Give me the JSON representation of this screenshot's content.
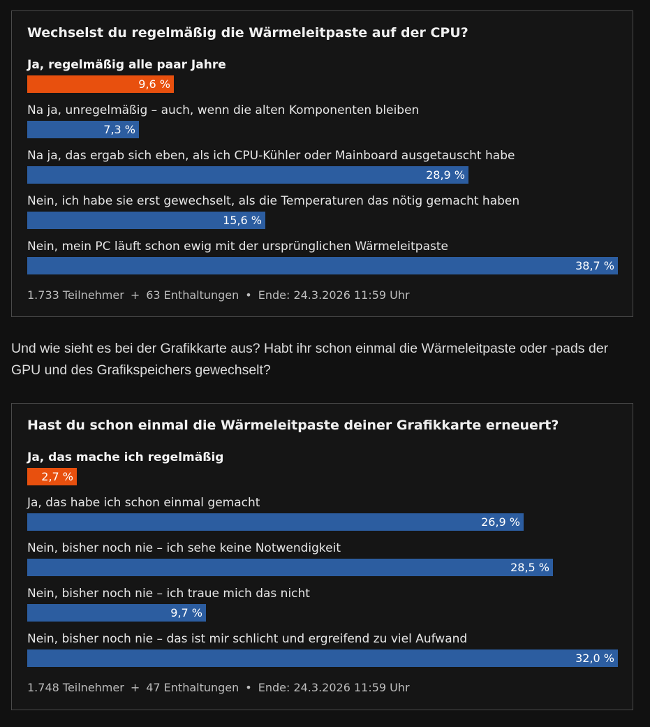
{
  "poll_cpu": {
    "question": "Wechselst du regelmäßig die Wärmeleitpaste auf der CPU?",
    "options": [
      {
        "label": "Ja, regelmäßig alle paar Jahre",
        "percent": 9.6,
        "value_text": "9,6 %",
        "selected": true
      },
      {
        "label": "Na ja, unregelmäßig – auch, wenn die alten Komponenten bleiben",
        "percent": 7.3,
        "value_text": "7,3 %",
        "selected": false
      },
      {
        "label": "Na ja, das ergab sich eben, als ich CPU-Kühler oder Mainboard ausgetauscht habe",
        "percent": 28.9,
        "value_text": "28,9 %",
        "selected": false
      },
      {
        "label": "Nein, ich habe sie erst gewechselt, als die Temperaturen das nötig gemacht haben",
        "percent": 15.6,
        "value_text": "15,6 %",
        "selected": false
      },
      {
        "label": "Nein, mein PC läuft schon ewig mit der ursprünglichen Wärmeleitpaste",
        "percent": 38.7,
        "value_text": "38,7 %",
        "selected": false
      }
    ],
    "max_percent": 38.7,
    "participants": "1.733 Teilnehmer",
    "plus": "+",
    "abstentions": "63 Enthaltungen",
    "bullet": "•",
    "end": "Ende: 24.3.2026 11:59 Uhr"
  },
  "intertext": "Und wie sieht es bei der Grafikkarte aus? Habt ihr schon einmal die Wärmeleitpaste oder -pads der GPU und des Grafikspeichers gewechselt?",
  "poll_gpu": {
    "question": "Hast du schon einmal die Wärmeleitpaste deiner Grafikkarte erneuert?",
    "options": [
      {
        "label": "Ja, das mache ich regelmäßig",
        "percent": 2.7,
        "value_text": "2,7 %",
        "selected": true
      },
      {
        "label": "Ja, das habe ich schon einmal gemacht",
        "percent": 26.9,
        "value_text": "26,9 %",
        "selected": false
      },
      {
        "label": "Nein, bisher noch nie – ich sehe keine Notwendigkeit",
        "percent": 28.5,
        "value_text": "28,5 %",
        "selected": false
      },
      {
        "label": "Nein, bisher noch nie – ich traue mich das nicht",
        "percent": 9.7,
        "value_text": "9,7 %",
        "selected": false
      },
      {
        "label": "Nein, bisher noch nie – das ist mir schlicht und ergreifend zu viel Aufwand",
        "percent": 32.0,
        "value_text": "32,0 %",
        "selected": false
      }
    ],
    "max_percent": 32.0,
    "participants": "1.748 Teilnehmer",
    "plus": "+",
    "abstentions": "47 Enthaltungen",
    "bullet": "•",
    "end": "Ende: 24.3.2026 11:59 Uhr"
  },
  "colors": {
    "bar_default": "#2c5da0",
    "bar_selected": "#e8500e",
    "background": "#111111",
    "border": "#4a4a4a"
  }
}
